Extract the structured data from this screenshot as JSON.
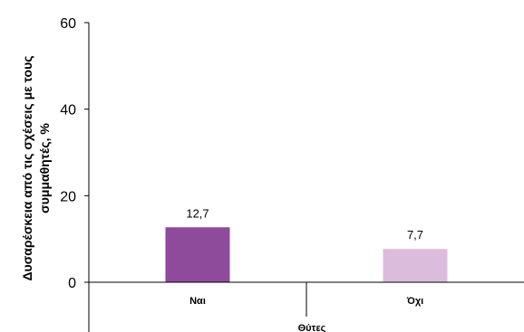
{
  "chart_data": {
    "type": "bar",
    "categories": [
      "Ναι",
      "Όχι"
    ],
    "values": [
      12.7,
      7.7
    ],
    "value_labels": [
      "12,7",
      "7,7"
    ],
    "xlabel": "Θύτες",
    "ylabel_lines": [
      "Δυσαρέσκεια από τις σχέσεις με τους",
      "συμμαθητές, %"
    ],
    "ylim": [
      0,
      60
    ],
    "yticks": [
      "0",
      "20",
      "40",
      "60"
    ],
    "grid": false,
    "legend": "none",
    "colors": [
      "#8e4a9b",
      "#dcbcdc"
    ]
  }
}
